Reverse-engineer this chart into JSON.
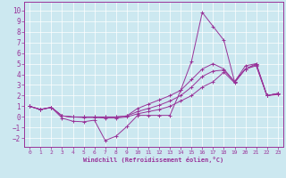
{
  "xlabel": "Windchill (Refroidissement éolien,°C)",
  "bg_color": "#cce8f0",
  "line_color": "#993399",
  "grid_color": "#ffffff",
  "xlim": [
    -0.5,
    23.5
  ],
  "ylim": [
    -2.8,
    10.8
  ],
  "xticks": [
    0,
    1,
    2,
    3,
    4,
    5,
    6,
    7,
    8,
    9,
    10,
    11,
    12,
    13,
    14,
    15,
    16,
    17,
    18,
    19,
    20,
    21,
    22,
    23
  ],
  "yticks": [
    -2,
    -1,
    0,
    1,
    2,
    3,
    4,
    5,
    6,
    7,
    8,
    9,
    10
  ],
  "line1_x": [
    0,
    1,
    2,
    3,
    4,
    5,
    6,
    7,
    8,
    9,
    10,
    11,
    12,
    13,
    14,
    15,
    16,
    17,
    18,
    19,
    20,
    21,
    22,
    23
  ],
  "line1_y": [
    1.0,
    0.7,
    0.9,
    -0.1,
    -0.4,
    -0.45,
    -0.3,
    -2.2,
    -1.8,
    -0.9,
    0.15,
    0.15,
    0.15,
    0.15,
    2.5,
    5.2,
    9.8,
    8.5,
    7.2,
    3.3,
    4.8,
    5.0,
    2.0,
    2.2
  ],
  "line2_x": [
    0,
    1,
    2,
    3,
    4,
    5,
    6,
    7,
    8,
    9,
    10,
    11,
    12,
    13,
    14,
    15,
    16,
    17,
    18,
    19,
    20,
    21,
    22,
    23
  ],
  "line2_y": [
    1.0,
    0.7,
    0.9,
    0.1,
    0.0,
    -0.05,
    -0.05,
    -0.1,
    -0.1,
    0.0,
    0.3,
    0.5,
    0.7,
    1.0,
    1.5,
    2.0,
    2.8,
    3.3,
    4.2,
    3.2,
    4.5,
    4.8,
    2.0,
    2.1
  ],
  "line3_x": [
    0,
    1,
    2,
    3,
    4,
    5,
    6,
    7,
    8,
    9,
    10,
    11,
    12,
    13,
    14,
    15,
    16,
    17,
    18,
    19,
    20,
    21,
    22,
    23
  ],
  "line3_y": [
    1.0,
    0.7,
    0.9,
    0.1,
    0.0,
    0.0,
    0.0,
    0.0,
    0.0,
    0.1,
    0.5,
    0.8,
    1.1,
    1.5,
    2.0,
    2.8,
    3.8,
    4.3,
    4.4,
    3.3,
    4.5,
    4.9,
    2.0,
    2.2
  ],
  "line4_x": [
    0,
    1,
    2,
    3,
    4,
    5,
    6,
    7,
    8,
    9,
    10,
    11,
    12,
    13,
    14,
    15,
    16,
    17,
    18,
    19,
    20,
    21,
    22,
    23
  ],
  "line4_y": [
    1.0,
    0.7,
    0.9,
    0.1,
    0.0,
    0.0,
    0.0,
    0.0,
    0.0,
    0.1,
    0.8,
    1.2,
    1.6,
    2.0,
    2.5,
    3.5,
    4.5,
    5.0,
    4.5,
    3.3,
    4.5,
    5.0,
    2.0,
    2.2
  ]
}
